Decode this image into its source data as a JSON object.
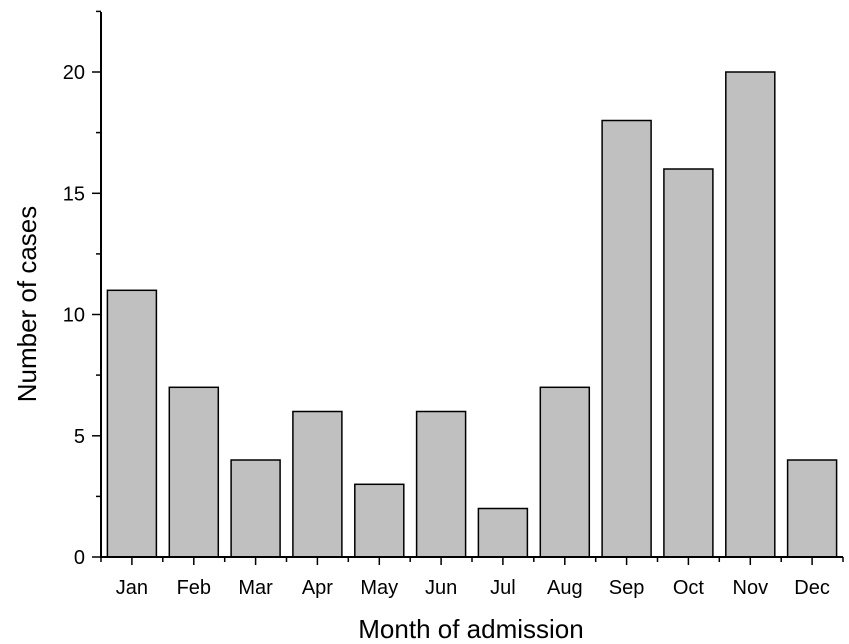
{
  "chart_data": {
    "type": "bar",
    "title": "",
    "xlabel": "Month of admission",
    "ylabel": "Number of cases",
    "categories": [
      "Jan",
      "Feb",
      "Mar",
      "Apr",
      "May",
      "Jun",
      "Jul",
      "Aug",
      "Sep",
      "Oct",
      "Nov",
      "Dec"
    ],
    "values": [
      11,
      7,
      4,
      6,
      3,
      6,
      2,
      7,
      18,
      16,
      20,
      4
    ],
    "ylim": [
      0,
      22.5
    ],
    "yticks": [
      0,
      5,
      10,
      15,
      20
    ],
    "grid": false,
    "legend": "none",
    "bar_color": "#c0c0c0",
    "bar_edge_color": "#000000"
  }
}
